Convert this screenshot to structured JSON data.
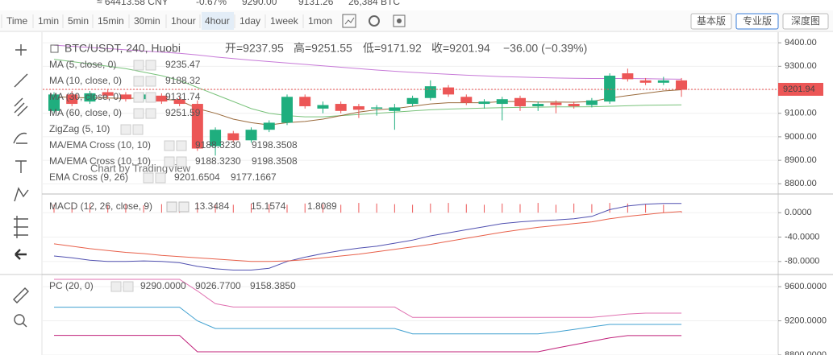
{
  "top_bar": {
    "cny": "≈ 64413.58 CNY",
    "change": "-0.67%",
    "high": "9290.00",
    "low": "9131.26",
    "volume": "26,384 BTC"
  },
  "toolbar": {
    "intervals": [
      "Time",
      "1min",
      "5min",
      "15min",
      "30min",
      "1hour",
      "4hour",
      "1day",
      "1week",
      "1mon"
    ],
    "active": 6,
    "versions": [
      "基本版",
      "专业版",
      "深度图"
    ],
    "active_version": 1
  },
  "chart": {
    "legend": {
      "title": "BTC/USDT, 240, Huobi",
      "open": "开=9237.95",
      "high": "高=9251.55",
      "low": "低=9171.92",
      "close": "收=9201.94",
      "change": "−36.00 (−0.39%)"
    },
    "indicators": [
      {
        "name": "MA (5, close, 0)",
        "values": [
          "9235.47"
        ],
        "colors": [
          "#9c6ad0"
        ]
      },
      {
        "name": "MA (10, close, 0)",
        "values": [
          "9188.32"
        ],
        "colors": [
          "#6b86a8"
        ]
      },
      {
        "name": "MA (30, close, 0)",
        "values": [
          "9131.74"
        ],
        "colors": [
          "#4caf50"
        ]
      },
      {
        "name": "MA (60, close, 0)",
        "values": [
          "9251.59"
        ],
        "colors": [
          "#b0309a"
        ]
      },
      {
        "name": "ZigZag (5, 10)",
        "values": [],
        "colors": []
      },
      {
        "name": "MA/EMA Cross (10, 10)",
        "values": [
          "9188.3230",
          "9198.3508"
        ],
        "colors": [
          "#e0502a",
          "#1b8a1b"
        ]
      },
      {
        "name": "MA/EMA Cross (10, 10)",
        "values": [
          "9188.3230",
          "9198.3508"
        ],
        "colors": [
          "#e0502a",
          "#1b8a1b"
        ]
      },
      {
        "name": "EMA Cross (9, 26)",
        "values": [
          "9201.6504",
          "9177.1667"
        ],
        "colors": [
          "#e0502a",
          "#1b8a1b"
        ]
      }
    ],
    "watermark": "Chart by TradingView",
    "last_price": 9201.94,
    "last_price_label": "9201.94",
    "ylim": [
      8760,
      9445
    ],
    "yticks": [
      {
        "value": 9400,
        "label": "9400.00"
      },
      {
        "value": 9300,
        "label": "9300.00"
      },
      {
        "value": 9200,
        "label": "9200.00"
      },
      {
        "value": 9100,
        "label": "9100.00"
      },
      {
        "value": 9000,
        "label": "9000.00"
      },
      {
        "value": 8900,
        "label": "8900.00"
      },
      {
        "value": 8800,
        "label": "8800.00"
      }
    ],
    "up_color": "#1fae7e",
    "down_color": "#ec5656",
    "candles": [
      {
        "open": 9110,
        "high": 9190,
        "low": 9100,
        "close": 9180
      },
      {
        "open": 9180,
        "high": 9195,
        "low": 9130,
        "close": 9140
      },
      {
        "open": 9150,
        "high": 9195,
        "low": 9140,
        "close": 9185
      },
      {
        "open": 9190,
        "high": 9200,
        "low": 9160,
        "close": 9175
      },
      {
        "open": 9180,
        "high": 9190,
        "low": 9150,
        "close": 9160
      },
      {
        "open": 9160,
        "high": 9190,
        "low": 9150,
        "close": 9180
      },
      {
        "open": 9175,
        "high": 9185,
        "low": 9140,
        "close": 9150
      },
      {
        "open": 9160,
        "high": 9170,
        "low": 9130,
        "close": 9140
      },
      {
        "open": 9140,
        "high": 9155,
        "low": 8940,
        "close": 8950
      },
      {
        "open": 8960,
        "high": 9040,
        "low": 8920,
        "close": 9030
      },
      {
        "open": 9015,
        "high": 9025,
        "low": 8975,
        "close": 8985
      },
      {
        "open": 8985,
        "high": 9040,
        "low": 8975,
        "close": 9030
      },
      {
        "open": 9030,
        "high": 9070,
        "low": 9020,
        "close": 9060
      },
      {
        "open": 9060,
        "high": 9180,
        "low": 9050,
        "close": 9170
      },
      {
        "open": 9170,
        "high": 9180,
        "low": 9120,
        "close": 9130
      },
      {
        "open": 9120,
        "high": 9150,
        "low": 9100,
        "close": 9135
      },
      {
        "open": 9140,
        "high": 9150,
        "low": 9100,
        "close": 9110
      },
      {
        "open": 9130,
        "high": 9140,
        "low": 9080,
        "close": 9115
      },
      {
        "open": 9120,
        "high": 9135,
        "low": 9090,
        "close": 9125
      },
      {
        "open": 9110,
        "high": 9140,
        "low": 9030,
        "close": 9125
      },
      {
        "open": 9140,
        "high": 9175,
        "low": 9130,
        "close": 9165
      },
      {
        "open": 9165,
        "high": 9240,
        "low": 9155,
        "close": 9215
      },
      {
        "open": 9210,
        "high": 9220,
        "low": 9170,
        "close": 9180
      },
      {
        "open": 9170,
        "high": 9180,
        "low": 9135,
        "close": 9145
      },
      {
        "open": 9140,
        "high": 9160,
        "low": 9120,
        "close": 9150
      },
      {
        "open": 9140,
        "high": 9170,
        "low": 9070,
        "close": 9160
      },
      {
        "open": 9165,
        "high": 9175,
        "low": 9110,
        "close": 9130
      },
      {
        "open": 9130,
        "high": 9150,
        "low": 9110,
        "close": 9140
      },
      {
        "open": 9145,
        "high": 9155,
        "low": 9100,
        "close": 9135
      },
      {
        "open": 9140,
        "high": 9150,
        "low": 9120,
        "close": 9130
      },
      {
        "open": 9135,
        "high": 9165,
        "low": 9125,
        "close": 9155
      },
      {
        "open": 9150,
        "high": 9270,
        "low": 9140,
        "close": 9260
      },
      {
        "open": 9270,
        "high": 9290,
        "low": 9235,
        "close": 9245
      },
      {
        "open": 9240,
        "high": 9250,
        "low": 9220,
        "close": 9230
      },
      {
        "open": 9230,
        "high": 9255,
        "low": 9220,
        "close": 9240
      },
      {
        "open": 9240,
        "high": 9250,
        "low": 9170,
        "close": 9200
      }
    ],
    "lines": [
      {
        "color": "#c77ad8",
        "values": [
          9390,
          9385,
          9380,
          9375,
          9370,
          9365,
          9360,
          9355,
          9348,
          9340,
          9333,
          9326,
          9320,
          9314,
          9308,
          9302,
          9296,
          9290,
          9284,
          9279,
          9274,
          9270,
          9266,
          9262,
          9259,
          9256,
          9254,
          9252,
          9250,
          9249,
          9248,
          9248,
          9248,
          9247,
          9246,
          9245
        ]
      },
      {
        "color": "#78c27a",
        "values": [
          9330,
          9320,
          9310,
          9300,
          9290,
          9275,
          9260,
          9240,
          9210,
          9180,
          9150,
          9120,
          9100,
          9090,
          9085,
          9085,
          9090,
          9095,
          9100,
          9105,
          9110,
          9115,
          9118,
          9120,
          9122,
          9124,
          9125,
          9126,
          9127,
          9127,
          9128,
          9130,
          9132,
          9134,
          9135,
          9136
        ]
      },
      {
        "color": "#9a6b3c",
        "values": [
          9170,
          9168,
          9165,
          9165,
          9163,
          9165,
          9160,
          9155,
          9120,
          9100,
          9075,
          9060,
          9050,
          9060,
          9065,
          9075,
          9090,
          9105,
          9115,
          9120,
          9130,
          9140,
          9145,
          9145,
          9145,
          9150,
          9150,
          9148,
          9148,
          9147,
          9150,
          9165,
          9175,
          9185,
          9195,
          9200
        ]
      }
    ],
    "macd": {
      "label": "MACD (12, 26, close, 9)",
      "values": [
        "13.3484",
        "15.1574",
        "1.8089"
      ],
      "colors": [
        "#e0502a",
        "#3a3aa8",
        "#e0502a"
      ],
      "ylim": [
        -100,
        29.3
      ],
      "yticks": [
        {
          "value": 0,
          "label": "0.0000"
        },
        {
          "value": -40,
          "label": "-40.0000"
        },
        {
          "value": -80,
          "label": "-80.0000"
        }
      ],
      "histogram": [
        13,
        12,
        14,
        13,
        15,
        12,
        14,
        13,
        16,
        14,
        13,
        15,
        14,
        13,
        15,
        14,
        13,
        16,
        15,
        14,
        13,
        15,
        16,
        14,
        13,
        15,
        14,
        16,
        13,
        15,
        14,
        16,
        15,
        14,
        13,
        2
      ],
      "lines": [
        {
          "color": "#5050b0",
          "values": [
            -71,
            -74,
            -78,
            -80,
            -80,
            -79,
            -80,
            -82,
            -88,
            -92,
            -94,
            -94,
            -91,
            -80,
            -73,
            -67,
            -62,
            -58,
            -55,
            -50,
            -45,
            -38,
            -33,
            -28,
            -23,
            -18,
            -15,
            -13,
            -12,
            -10,
            -6,
            5,
            11,
            14,
            15,
            15
          ]
        },
        {
          "color": "#e8604a",
          "values": [
            -51,
            -55,
            -59,
            -62,
            -65,
            -67,
            -70,
            -72,
            -74,
            -76,
            -78,
            -80,
            -80,
            -79,
            -77,
            -74,
            -71,
            -68,
            -64,
            -60,
            -56,
            -52,
            -47,
            -42,
            -37,
            -32,
            -28,
            -24,
            -21,
            -18,
            -15,
            -10,
            -6,
            -3,
            0,
            1.8
          ]
        }
      ]
    },
    "pc": {
      "label": "PC (20, 0)",
      "values": [
        "9290.0000",
        "9026.7700",
        "9158.3850"
      ],
      "colors": [
        "#c02080",
        "#c02080",
        "#2090c0"
      ],
      "ylim": [
        8800,
        9733
      ],
      "yticks": [
        {
          "value": 9600,
          "label": "9600.0000"
        },
        {
          "value": 9200,
          "label": "9200.0000"
        },
        {
          "value": 8800,
          "label": "8800.0000"
        }
      ],
      "lines": [
        {
          "color": "#e070b0",
          "values": [
            9686,
            9686,
            9686,
            9686,
            9686,
            9686,
            9686,
            9686,
            9550,
            9400,
            9362,
            9362,
            9362,
            9362,
            9362,
            9362,
            9362,
            9362,
            9362,
            9362,
            9240,
            9240,
            9240,
            9240,
            9240,
            9240,
            9240,
            9240,
            9240,
            9240,
            9240,
            9260,
            9280,
            9290,
            9290,
            9290
          ]
        },
        {
          "color": "#c0207a",
          "values": [
            9030,
            9030,
            9030,
            9030,
            9030,
            9030,
            9030,
            9030,
            8838,
            8838,
            8838,
            8838,
            8838,
            8838,
            8838,
            8838,
            8838,
            8838,
            8838,
            8838,
            8838,
            8838,
            8838,
            8838,
            8838,
            8838,
            8838,
            8838,
            8880,
            8920,
            8960,
            9000,
            9027,
            9027,
            9027,
            9027
          ]
        },
        {
          "color": "#40a0d0",
          "values": [
            9360,
            9360,
            9360,
            9360,
            9360,
            9360,
            9360,
            9360,
            9200,
            9110,
            9110,
            9110,
            9110,
            9110,
            9110,
            9110,
            9110,
            9110,
            9110,
            9110,
            9048,
            9048,
            9048,
            9048,
            9048,
            9048,
            9048,
            9048,
            9070,
            9100,
            9130,
            9158,
            9158,
            9158,
            9158,
            9158
          ]
        }
      ]
    }
  }
}
